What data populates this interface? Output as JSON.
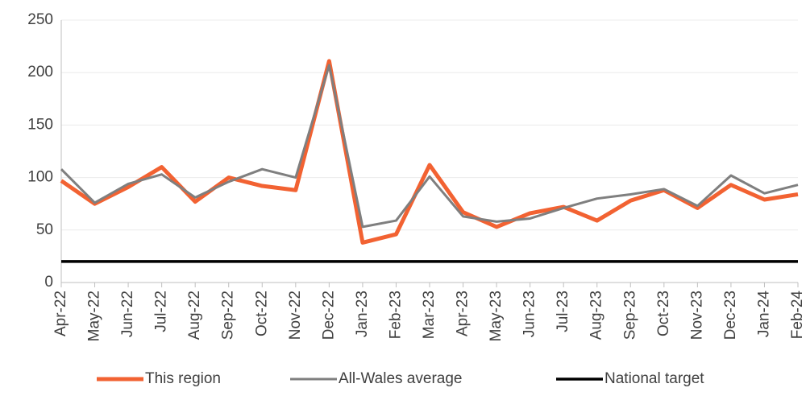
{
  "chart_data": {
    "type": "line",
    "categories": [
      "Apr-22",
      "May-22",
      "Jun-22",
      "Jul-22",
      "Aug-22",
      "Sep-22",
      "Oct-22",
      "Nov-22",
      "Dec-22",
      "Jan-23",
      "Feb-23",
      "Mar-23",
      "Apr-23",
      "May-23",
      "Jun-23",
      "Jul-23",
      "Aug-23",
      "Sep-23",
      "Oct-23",
      "Nov-23",
      "Dec-23",
      "Jan-24",
      "Feb-24"
    ],
    "series": [
      {
        "name": "This region",
        "color": "#f26232",
        "values": [
          97,
          75,
          91,
          110,
          77,
          100,
          92,
          88,
          211,
          38,
          46,
          112,
          67,
          53,
          66,
          72,
          59,
          78,
          88,
          71,
          93,
          79,
          84
        ]
      },
      {
        "name": "All-Wales average",
        "color": "#7f7f7f",
        "values": [
          108,
          76,
          94,
          103,
          81,
          96,
          108,
          100,
          207,
          53,
          59,
          101,
          63,
          58,
          61,
          71,
          80,
          84,
          89,
          73,
          102,
          85,
          93
        ]
      },
      {
        "name": "National target",
        "color": "#000000",
        "values": [
          20,
          20,
          20,
          20,
          20,
          20,
          20,
          20,
          20,
          20,
          20,
          20,
          20,
          20,
          20,
          20,
          20,
          20,
          20,
          20,
          20,
          20,
          20
        ]
      }
    ],
    "ylim": [
      0,
      250
    ],
    "yticks": [
      0,
      50,
      100,
      150,
      200,
      250
    ],
    "grid": true,
    "legend": "bottom"
  }
}
